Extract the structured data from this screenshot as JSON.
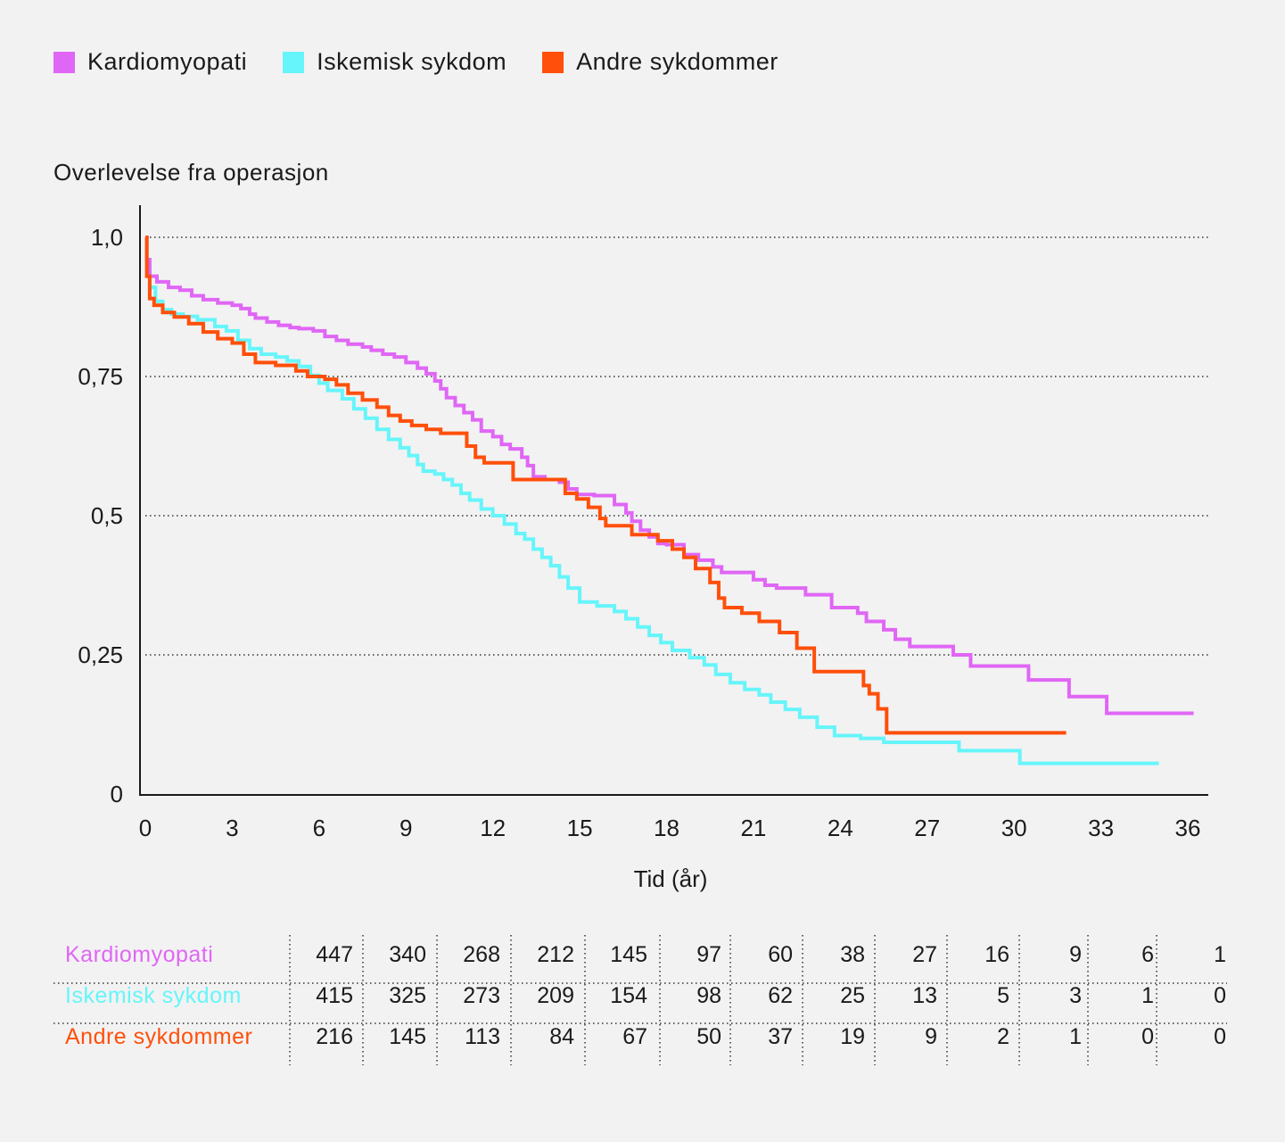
{
  "legend": {
    "items": [
      {
        "label": "Kardiomyopati",
        "color": "#e066f5"
      },
      {
        "label": "Iskemisk sykdom",
        "color": "#66f5fa"
      },
      {
        "label": "Andre sykdommer",
        "color": "#ff4f0a"
      }
    ]
  },
  "chart_data": {
    "type": "line",
    "step": true,
    "ylabel": "Overlevelse fra operasjon",
    "xlabel": "Tid (år)",
    "xlim": [
      0,
      36
    ],
    "ylim": [
      0,
      1
    ],
    "x_ticks": [
      "0",
      "3",
      "6",
      "9",
      "12",
      "15",
      "18",
      "21",
      "24",
      "27",
      "30",
      "33",
      "36"
    ],
    "y_ticks": [
      {
        "value": 1.0,
        "label": "1,0"
      },
      {
        "value": 0.75,
        "label": "0,75"
      },
      {
        "value": 0.5,
        "label": "0,5"
      },
      {
        "value": 0.25,
        "label": "0,25"
      },
      {
        "value": 0,
        "label": "0"
      }
    ],
    "grid": "horizontal dotted",
    "legend_position": "top-left",
    "series": [
      {
        "name": "Kardiomyopati",
        "color": "#e066f5",
        "points": [
          [
            0,
            1.0
          ],
          [
            0.05,
            0.96
          ],
          [
            0.15,
            0.93
          ],
          [
            0.4,
            0.92
          ],
          [
            0.8,
            0.91
          ],
          [
            1.2,
            0.905
          ],
          [
            1.6,
            0.895
          ],
          [
            2.0,
            0.888
          ],
          [
            2.5,
            0.882
          ],
          [
            3.0,
            0.878
          ],
          [
            3.3,
            0.872
          ],
          [
            3.6,
            0.862
          ],
          [
            3.8,
            0.855
          ],
          [
            4.2,
            0.848
          ],
          [
            4.6,
            0.842
          ],
          [
            5.0,
            0.838
          ],
          [
            5.3,
            0.836
          ],
          [
            5.8,
            0.832
          ],
          [
            6.2,
            0.822
          ],
          [
            6.6,
            0.815
          ],
          [
            7.0,
            0.808
          ],
          [
            7.5,
            0.803
          ],
          [
            7.8,
            0.797
          ],
          [
            8.2,
            0.79
          ],
          [
            8.6,
            0.785
          ],
          [
            9.0,
            0.775
          ],
          [
            9.4,
            0.765
          ],
          [
            9.7,
            0.755
          ],
          [
            10.0,
            0.742
          ],
          [
            10.2,
            0.728
          ],
          [
            10.4,
            0.712
          ],
          [
            10.7,
            0.698
          ],
          [
            11.0,
            0.685
          ],
          [
            11.3,
            0.672
          ],
          [
            11.6,
            0.652
          ],
          [
            12.0,
            0.642
          ],
          [
            12.3,
            0.628
          ],
          [
            12.6,
            0.62
          ],
          [
            13.0,
            0.605
          ],
          [
            13.2,
            0.59
          ],
          [
            13.4,
            0.57
          ],
          [
            13.8,
            0.565
          ],
          [
            14.3,
            0.56
          ],
          [
            14.6,
            0.548
          ],
          [
            14.9,
            0.538
          ],
          [
            15.5,
            0.536
          ],
          [
            16.2,
            0.52
          ],
          [
            16.6,
            0.505
          ],
          [
            16.8,
            0.49
          ],
          [
            17.1,
            0.474
          ],
          [
            17.4,
            0.462
          ],
          [
            17.7,
            0.45
          ],
          [
            18.0,
            0.448
          ],
          [
            18.6,
            0.43
          ],
          [
            19.1,
            0.42
          ],
          [
            19.6,
            0.408
          ],
          [
            19.9,
            0.398
          ],
          [
            20.5,
            0.398
          ],
          [
            21.0,
            0.385
          ],
          [
            21.4,
            0.375
          ],
          [
            21.8,
            0.37
          ],
          [
            22.8,
            0.358
          ],
          [
            23.7,
            0.335
          ],
          [
            24.6,
            0.325
          ],
          [
            24.9,
            0.31
          ],
          [
            25.5,
            0.295
          ],
          [
            25.9,
            0.278
          ],
          [
            26.4,
            0.265
          ],
          [
            27.9,
            0.25
          ],
          [
            28.5,
            0.23
          ],
          [
            30.5,
            0.205
          ],
          [
            31.9,
            0.175
          ],
          [
            33.2,
            0.145
          ],
          [
            36.2,
            0.145
          ]
        ]
      },
      {
        "name": "Iskemisk sykdom",
        "color": "#66f5fa",
        "points": [
          [
            0,
            1.0
          ],
          [
            0.05,
            0.95
          ],
          [
            0.15,
            0.91
          ],
          [
            0.35,
            0.885
          ],
          [
            0.6,
            0.87
          ],
          [
            0.9,
            0.862
          ],
          [
            1.3,
            0.858
          ],
          [
            1.8,
            0.852
          ],
          [
            2.4,
            0.84
          ],
          [
            2.8,
            0.832
          ],
          [
            3.2,
            0.815
          ],
          [
            3.6,
            0.8
          ],
          [
            4.0,
            0.79
          ],
          [
            4.5,
            0.785
          ],
          [
            4.9,
            0.778
          ],
          [
            5.3,
            0.768
          ],
          [
            5.7,
            0.752
          ],
          [
            6.0,
            0.738
          ],
          [
            6.3,
            0.725
          ],
          [
            6.8,
            0.71
          ],
          [
            7.2,
            0.692
          ],
          [
            7.6,
            0.675
          ],
          [
            8.0,
            0.655
          ],
          [
            8.4,
            0.637
          ],
          [
            8.8,
            0.622
          ],
          [
            9.1,
            0.608
          ],
          [
            9.4,
            0.592
          ],
          [
            9.6,
            0.58
          ],
          [
            10.0,
            0.575
          ],
          [
            10.3,
            0.565
          ],
          [
            10.6,
            0.555
          ],
          [
            10.9,
            0.54
          ],
          [
            11.2,
            0.528
          ],
          [
            11.6,
            0.512
          ],
          [
            12.0,
            0.5
          ],
          [
            12.4,
            0.485
          ],
          [
            12.8,
            0.468
          ],
          [
            13.1,
            0.458
          ],
          [
            13.4,
            0.44
          ],
          [
            13.7,
            0.425
          ],
          [
            14.0,
            0.41
          ],
          [
            14.3,
            0.39
          ],
          [
            14.6,
            0.37
          ],
          [
            15.0,
            0.345
          ],
          [
            15.6,
            0.338
          ],
          [
            16.2,
            0.328
          ],
          [
            16.6,
            0.315
          ],
          [
            17.0,
            0.3
          ],
          [
            17.4,
            0.285
          ],
          [
            17.8,
            0.272
          ],
          [
            18.2,
            0.258
          ],
          [
            18.8,
            0.245
          ],
          [
            19.3,
            0.232
          ],
          [
            19.7,
            0.215
          ],
          [
            20.2,
            0.2
          ],
          [
            20.7,
            0.188
          ],
          [
            21.2,
            0.178
          ],
          [
            21.6,
            0.165
          ],
          [
            22.1,
            0.152
          ],
          [
            22.6,
            0.138
          ],
          [
            23.2,
            0.12
          ],
          [
            23.8,
            0.105
          ],
          [
            24.7,
            0.1
          ],
          [
            25.5,
            0.093
          ],
          [
            28.1,
            0.078
          ],
          [
            30.2,
            0.055
          ],
          [
            35.0,
            0.055
          ]
        ]
      },
      {
        "name": "Andre sykdommer",
        "color": "#ff4f0a",
        "points": [
          [
            0,
            1.0
          ],
          [
            0.05,
            0.93
          ],
          [
            0.15,
            0.89
          ],
          [
            0.3,
            0.878
          ],
          [
            0.6,
            0.865
          ],
          [
            1.0,
            0.857
          ],
          [
            1.5,
            0.845
          ],
          [
            2.0,
            0.83
          ],
          [
            2.5,
            0.818
          ],
          [
            3.0,
            0.81
          ],
          [
            3.4,
            0.79
          ],
          [
            3.8,
            0.775
          ],
          [
            4.5,
            0.77
          ],
          [
            5.2,
            0.76
          ],
          [
            5.6,
            0.75
          ],
          [
            6.2,
            0.745
          ],
          [
            6.6,
            0.735
          ],
          [
            7.0,
            0.72
          ],
          [
            7.5,
            0.708
          ],
          [
            8.0,
            0.695
          ],
          [
            8.4,
            0.68
          ],
          [
            8.8,
            0.67
          ],
          [
            9.2,
            0.662
          ],
          [
            9.7,
            0.655
          ],
          [
            10.2,
            0.648
          ],
          [
            11.1,
            0.625
          ],
          [
            11.4,
            0.605
          ],
          [
            11.7,
            0.595
          ],
          [
            12.7,
            0.565
          ],
          [
            13.2,
            0.565
          ],
          [
            14.2,
            0.565
          ],
          [
            14.5,
            0.54
          ],
          [
            14.9,
            0.53
          ],
          [
            15.3,
            0.515
          ],
          [
            15.7,
            0.495
          ],
          [
            15.9,
            0.482
          ],
          [
            16.8,
            0.466
          ],
          [
            17.7,
            0.455
          ],
          [
            18.2,
            0.44
          ],
          [
            18.6,
            0.425
          ],
          [
            19.0,
            0.405
          ],
          [
            19.5,
            0.38
          ],
          [
            19.8,
            0.352
          ],
          [
            20.0,
            0.335
          ],
          [
            20.6,
            0.325
          ],
          [
            21.2,
            0.31
          ],
          [
            21.9,
            0.29
          ],
          [
            22.5,
            0.262
          ],
          [
            23.1,
            0.22
          ],
          [
            24.8,
            0.195
          ],
          [
            25.0,
            0.18
          ],
          [
            25.3,
            0.153
          ],
          [
            25.6,
            0.11
          ],
          [
            31.8,
            0.11
          ]
        ]
      }
    ]
  },
  "risk_table": {
    "rows": [
      {
        "name": "Kardiomyopati",
        "color": "#e066f5",
        "values": [
          "447",
          "340",
          "268",
          "212",
          "145",
          "97",
          "60",
          "38",
          "27",
          "16",
          "9",
          "6",
          "1"
        ]
      },
      {
        "name": "Iskemisk sykdom",
        "color": "#66f5fa",
        "values": [
          "415",
          "325",
          "273",
          "209",
          "154",
          "98",
          "62",
          "25",
          "13",
          "5",
          "3",
          "1",
          "0"
        ]
      },
      {
        "name": "Andre sykdommer",
        "color": "#ff4f0a",
        "values": [
          "216",
          "145",
          "113",
          "84",
          "67",
          "50",
          "37",
          "19",
          "9",
          "2",
          "1",
          "0",
          "0"
        ]
      }
    ]
  }
}
